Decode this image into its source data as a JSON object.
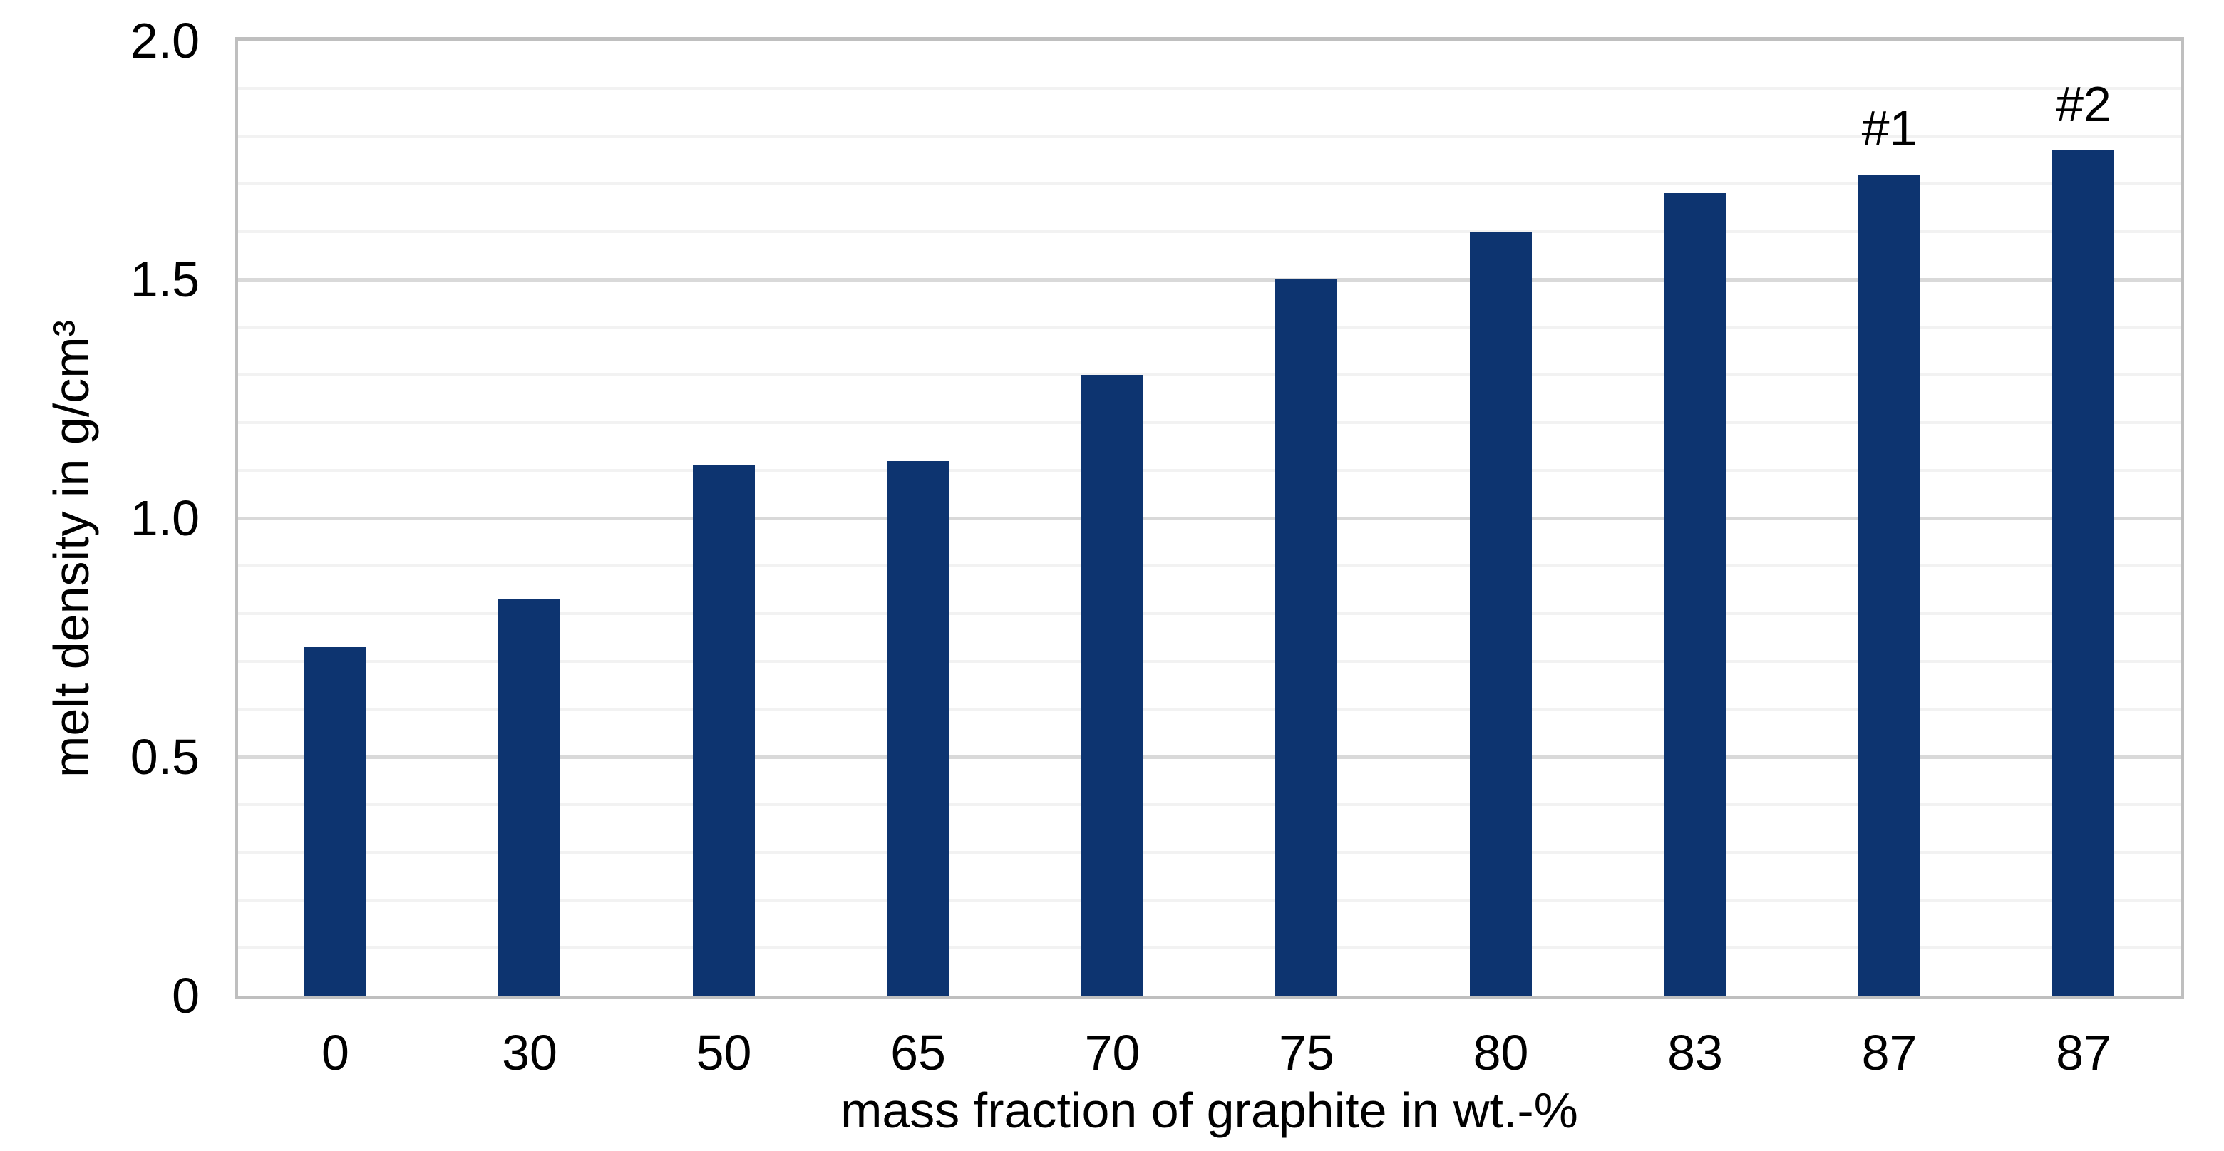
{
  "chart_data": {
    "type": "bar",
    "title": "",
    "categories": [
      "0",
      "30",
      "50",
      "65",
      "70",
      "75",
      "80",
      "83",
      "87",
      "87"
    ],
    "values": [
      0.73,
      0.83,
      1.11,
      1.12,
      1.3,
      1.5,
      1.6,
      1.68,
      1.72,
      1.77
    ],
    "xlabel": "mass fraction of graphite in wt.-%",
    "ylabel": "melt density in g/cm³",
    "ylim": [
      0,
      2.0
    ],
    "yticks": [
      {
        "value": 0,
        "label": "0"
      },
      {
        "value": 0.5,
        "label": "0.5"
      },
      {
        "value": 1.0,
        "label": "1.0"
      },
      {
        "value": 1.5,
        "label": "1.5"
      },
      {
        "value": 2.0,
        "label": "2.0"
      }
    ],
    "ytick_interval_major": 0.5,
    "ytick_interval_minor": 0.1,
    "grid": "horizontal, major and minor, plot fully framed",
    "legend": null,
    "annotations": [
      {
        "bar_index": 8,
        "text": "#1"
      },
      {
        "bar_index": 9,
        "text": "#2"
      }
    ],
    "colors": {
      "bar": "#0D3470",
      "minor_grid": "#F2F2F2",
      "major_grid": "#D9D9D9",
      "axis_border": "#BFBFBF",
      "text": "#000000",
      "background": "#FFFFFF"
    }
  }
}
